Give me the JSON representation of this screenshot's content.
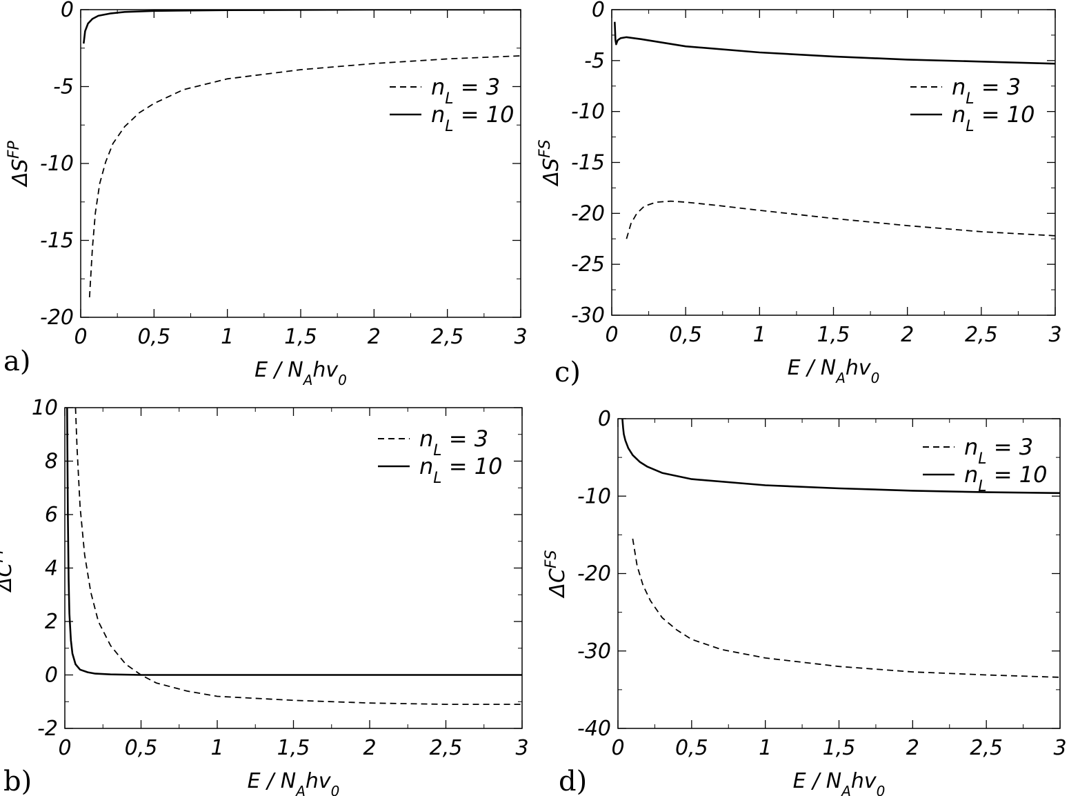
{
  "chart_data": [
    {
      "type": "line",
      "panel": "a)",
      "xlabel": {
        "pre": "E / N",
        "sub1": "A",
        "mid": "hv",
        "sub2": "0"
      },
      "ylabel": {
        "base": "ΔS",
        "sup": "FP"
      },
      "xlim": [
        0,
        3
      ],
      "ylim": [
        -20,
        0
      ],
      "xticks": [
        0,
        0.5,
        1,
        1.5,
        2,
        2.5,
        3
      ],
      "xtick_labels": [
        "0",
        "0,5",
        "1",
        "1,5",
        "2",
        "2,5",
        "3"
      ],
      "yticks": [
        -20,
        -15,
        -10,
        -5,
        0
      ],
      "ytick_labels": [
        "-20",
        "-15",
        "-10",
        "-5",
        "0"
      ],
      "legend": "top-right",
      "series": [
        {
          "name": "n_L = 3",
          "style": "dashed",
          "x": [
            0.06,
            0.08,
            0.1,
            0.13,
            0.17,
            0.22,
            0.3,
            0.4,
            0.5,
            0.7,
            1.0,
            1.5,
            2.0,
            2.5,
            3.0
          ],
          "y": [
            -18.7,
            -15.5,
            -13.2,
            -11.3,
            -9.9,
            -8.7,
            -7.6,
            -6.7,
            -6.1,
            -5.2,
            -4.5,
            -3.9,
            -3.5,
            -3.2,
            -3.0
          ]
        },
        {
          "name": "n_L = 10",
          "style": "solid",
          "x": [
            0.02,
            0.03,
            0.05,
            0.08,
            0.12,
            0.2,
            0.3,
            0.5,
            1.0,
            2.0,
            3.0
          ],
          "y": [
            -2.2,
            -1.4,
            -0.9,
            -0.6,
            -0.4,
            -0.25,
            -0.15,
            -0.08,
            -0.03,
            0.0,
            0.0
          ]
        }
      ]
    },
    {
      "type": "line",
      "panel": "c)",
      "xlabel": {
        "pre": "E / N",
        "sub1": "A",
        "mid": "hv",
        "sub2": "0"
      },
      "ylabel": {
        "base": "ΔS",
        "sup": "FS"
      },
      "xlim": [
        0,
        3
      ],
      "ylim": [
        -30,
        0
      ],
      "xticks": [
        0,
        0.5,
        1,
        1.5,
        2,
        2.5,
        3
      ],
      "xtick_labels": [
        "0",
        "0,5",
        "1",
        "1,5",
        "2",
        "2,5",
        "3"
      ],
      "yticks": [
        -30,
        -25,
        -20,
        -15,
        -10,
        -5,
        0
      ],
      "ytick_labels": [
        "-30",
        "-25",
        "-20",
        "-15",
        "-10",
        "-5",
        "0"
      ],
      "legend": "top-right",
      "series": [
        {
          "name": "n_L = 3",
          "style": "dashed",
          "x": [
            0.1,
            0.13,
            0.17,
            0.22,
            0.3,
            0.4,
            0.5,
            0.7,
            1.0,
            1.5,
            2.0,
            2.5,
            3.0
          ],
          "y": [
            -22.5,
            -21.0,
            -20.0,
            -19.3,
            -18.9,
            -18.8,
            -18.9,
            -19.2,
            -19.7,
            -20.5,
            -21.2,
            -21.8,
            -22.2
          ]
        },
        {
          "name": "n_L = 10",
          "style": "solid",
          "x": [
            0.02,
            0.025,
            0.03,
            0.04,
            0.06,
            0.1,
            0.2,
            0.5,
            1.0,
            1.5,
            2.0,
            2.5,
            3.0
          ],
          "y": [
            -1.2,
            -3.0,
            -3.4,
            -3.0,
            -2.8,
            -2.7,
            -2.9,
            -3.6,
            -4.2,
            -4.6,
            -4.9,
            -5.1,
            -5.3
          ]
        }
      ]
    },
    {
      "type": "line",
      "panel": "b)",
      "xlabel": {
        "pre": "E / N",
        "sub1": "A",
        "mid": "hv",
        "sub2": "0"
      },
      "ylabel": {
        "base": "ΔC",
        "sup": "FP"
      },
      "xlim": [
        0,
        3
      ],
      "ylim": [
        -2,
        10
      ],
      "xticks": [
        0,
        0.5,
        1,
        1.5,
        2,
        2.5,
        3
      ],
      "xtick_labels": [
        "0",
        "0,5",
        "1",
        "1,5",
        "2",
        "2,5",
        "3"
      ],
      "yticks": [
        -2,
        0,
        2,
        4,
        6,
        8,
        10
      ],
      "ytick_labels": [
        "-2",
        "0",
        "2",
        "4",
        "6",
        "8",
        "10"
      ],
      "legend": "top-right",
      "series": [
        {
          "name": "n_L = 3",
          "style": "dashed",
          "x": [
            0.07,
            0.08,
            0.1,
            0.13,
            0.17,
            0.22,
            0.3,
            0.4,
            0.5,
            0.6,
            0.8,
            1.0,
            1.5,
            2.0,
            2.5,
            3.0
          ],
          "y": [
            10.0,
            8.5,
            6.3,
            4.5,
            3.1,
            2.0,
            1.1,
            0.4,
            0.0,
            -0.3,
            -0.6,
            -0.8,
            -0.95,
            -1.05,
            -1.1,
            -1.1
          ]
        },
        {
          "name": "n_L = 10",
          "style": "solid",
          "x": [
            0.015,
            0.02,
            0.025,
            0.03,
            0.04,
            0.05,
            0.07,
            0.1,
            0.15,
            0.2,
            0.3,
            0.5,
            1.0,
            2.0,
            3.0
          ],
          "y": [
            10.0,
            6.0,
            3.6,
            2.3,
            1.3,
            0.8,
            0.4,
            0.2,
            0.1,
            0.05,
            0.02,
            0.0,
            0.0,
            0.0,
            0.0
          ]
        }
      ]
    },
    {
      "type": "line",
      "panel": "d)",
      "xlabel": {
        "pre": "E / N",
        "sub1": "A",
        "mid": "hv",
        "sub2": "0"
      },
      "ylabel": {
        "base": "ΔC",
        "sup": "FS"
      },
      "xlim": [
        0,
        3
      ],
      "ylim": [
        -40,
        0
      ],
      "xticks": [
        0,
        0.5,
        1,
        1.5,
        2,
        2.5,
        3
      ],
      "xtick_labels": [
        "0",
        "0,5",
        "1",
        "1,5",
        "2",
        "2,5",
        "3"
      ],
      "yticks": [
        -40,
        -30,
        -20,
        -10,
        0
      ],
      "ytick_labels": [
        "-40",
        "-30",
        "-20",
        "-10",
        "0"
      ],
      "legend": "top-right",
      "series": [
        {
          "name": "n_L = 3",
          "style": "dashed",
          "x": [
            0.1,
            0.13,
            0.17,
            0.22,
            0.3,
            0.4,
            0.5,
            0.7,
            1.0,
            1.5,
            2.0,
            2.5,
            3.0
          ],
          "y": [
            -15.5,
            -19.0,
            -21.5,
            -23.5,
            -25.7,
            -27.3,
            -28.5,
            -29.8,
            -30.9,
            -32.0,
            -32.7,
            -33.1,
            -33.4
          ]
        },
        {
          "name": "n_L = 10",
          "style": "solid",
          "x": [
            0.03,
            0.035,
            0.04,
            0.05,
            0.07,
            0.1,
            0.15,
            0.2,
            0.3,
            0.5,
            1.0,
            1.5,
            2.0,
            2.5,
            3.0
          ],
          "y": [
            0.0,
            -1.2,
            -2.0,
            -2.8,
            -3.8,
            -4.7,
            -5.6,
            -6.2,
            -7.0,
            -7.8,
            -8.6,
            -9.0,
            -9.3,
            -9.5,
            -9.6
          ]
        }
      ]
    }
  ]
}
